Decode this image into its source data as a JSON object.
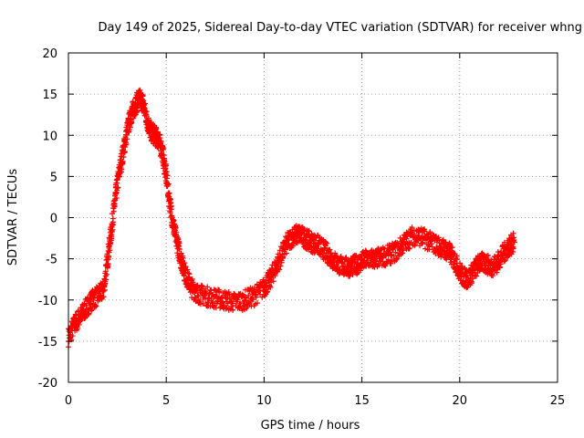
{
  "chart_data": {
    "type": "scatter",
    "title": "Day 149 of 2025, Sidereal Day-to-day VTEC variation (SDTVAR) for receiver whng",
    "xlabel": "GPS time / hours",
    "ylabel": "SDTVAR / TECUs",
    "xlim": [
      0,
      25
    ],
    "ylim": [
      -20,
      20
    ],
    "xticks": [
      0,
      5,
      10,
      15,
      20,
      25
    ],
    "yticks": [
      -20,
      -15,
      -10,
      -5,
      0,
      5,
      10,
      15,
      20
    ],
    "grid": true,
    "marker": "+",
    "color": "#ff0000",
    "series": [
      {
        "name": "SDTVAR",
        "band_width": 1.2,
        "x": [
          0.0,
          0.3,
          0.6,
          0.9,
          1.2,
          1.5,
          1.8,
          2.0,
          2.2,
          2.4,
          2.6,
          2.8,
          3.0,
          3.2,
          3.4,
          3.6,
          3.8,
          4.0,
          4.2,
          4.4,
          4.6,
          4.8,
          5.0,
          5.2,
          5.4,
          5.6,
          5.8,
          6.0,
          6.3,
          6.6,
          7.0,
          7.5,
          8.0,
          8.5,
          9.0,
          9.5,
          10.0,
          10.3,
          10.6,
          10.9,
          11.2,
          11.5,
          11.8,
          12.1,
          12.4,
          12.7,
          13.0,
          13.3,
          13.6,
          13.9,
          14.2,
          14.5,
          14.8,
          15.1,
          15.4,
          15.7,
          16.0,
          16.4,
          16.8,
          17.2,
          17.6,
          18.0,
          18.4,
          18.8,
          19.2,
          19.5,
          19.8,
          20.1,
          20.4,
          20.7,
          21.0,
          21.3,
          21.6,
          21.9,
          22.2,
          22.5,
          22.8
        ],
        "y": [
          -14.5,
          -13.0,
          -12.0,
          -11.0,
          -10.0,
          -9.5,
          -8.8,
          -5.0,
          -1.5,
          2.5,
          5.5,
          8.0,
          10.5,
          12.5,
          13.5,
          14.5,
          14.0,
          12.0,
          10.5,
          10.0,
          9.5,
          8.0,
          5.0,
          1.5,
          -1.5,
          -3.5,
          -5.5,
          -7.0,
          -8.5,
          -9.2,
          -9.5,
          -9.8,
          -10.0,
          -10.3,
          -10.0,
          -9.5,
          -8.5,
          -7.5,
          -6.0,
          -4.5,
          -3.0,
          -2.2,
          -2.0,
          -2.5,
          -3.0,
          -3.2,
          -3.8,
          -4.5,
          -5.3,
          -5.8,
          -6.0,
          -5.9,
          -5.6,
          -5.2,
          -5.0,
          -5.0,
          -4.8,
          -4.5,
          -4.0,
          -3.0,
          -2.2,
          -2.3,
          -2.8,
          -3.3,
          -3.8,
          -4.3,
          -5.5,
          -7.0,
          -7.5,
          -6.5,
          -5.5,
          -5.5,
          -6.0,
          -5.5,
          -4.5,
          -3.5,
          -3.0
        ]
      }
    ]
  }
}
